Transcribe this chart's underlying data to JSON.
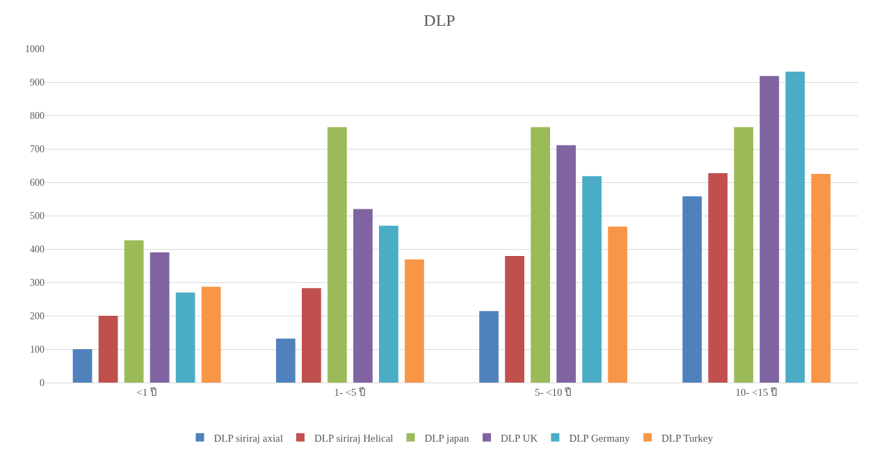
{
  "chart_data": {
    "type": "bar",
    "title": "DLP",
    "categories": [
      "<1 ปี",
      "1- <5 ปี",
      "5- <10 ปี",
      "10- <15 ปี"
    ],
    "series": [
      {
        "name": "DLP siriraj axial",
        "color": "#4f81bd",
        "values": [
          100,
          132,
          214,
          558
        ]
      },
      {
        "name": "DLP siriraj Helical",
        "color": "#c0504d",
        "values": [
          200,
          283,
          379,
          627
        ]
      },
      {
        "name": "DLP japan",
        "color": "#9bbb59",
        "values": [
          426,
          765,
          765,
          765
        ]
      },
      {
        "name": "DLP UK",
        "color": "#8064a2",
        "values": [
          390,
          520,
          711,
          918
        ]
      },
      {
        "name": "DLP Germany",
        "color": "#4bacc6",
        "values": [
          270,
          470,
          618,
          931
        ]
      },
      {
        "name": "DLP Turkey",
        "color": "#f79646",
        "values": [
          287,
          369,
          467,
          625
        ]
      }
    ],
    "ylim": [
      0,
      1000
    ],
    "yticks": [
      0,
      100,
      200,
      300,
      400,
      500,
      600,
      700,
      800,
      900,
      1000
    ],
    "grid": "y",
    "legend": "bottom"
  }
}
